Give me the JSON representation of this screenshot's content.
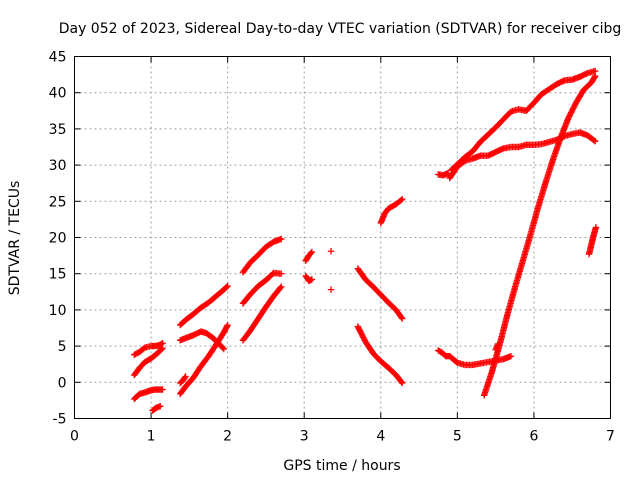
{
  "chart_data": {
    "type": "scatter",
    "title": "Day 052 of 2023, Sidereal Day-to-day VTEC variation (SDTVAR) for receiver cibg",
    "xlabel": "GPS time / hours",
    "ylabel": "SDTVAR / TECUs",
    "xlim": [
      0,
      7
    ],
    "ylim": [
      -5,
      45
    ],
    "x_ticks": [
      0,
      1,
      2,
      3,
      4,
      5,
      6,
      7
    ],
    "y_ticks": [
      -5,
      0,
      5,
      10,
      15,
      20,
      25,
      30,
      35,
      40,
      45
    ],
    "grid": true,
    "marker": "+",
    "color": "#ff0000",
    "segments": [
      {
        "x": [
          0.78,
          0.85,
          0.92,
          1.0,
          1.05,
          1.1,
          1.15
        ],
        "y": [
          3.8,
          4.2,
          4.8,
          5.0,
          5.0,
          5.1,
          5.4
        ]
      },
      {
        "x": [
          0.78,
          0.85,
          0.92,
          1.0,
          1.05,
          1.1,
          1.15
        ],
        "y": [
          1.0,
          2.0,
          2.8,
          3.3,
          3.7,
          4.2,
          4.7
        ]
      },
      {
        "x": [
          0.78,
          0.85,
          0.92,
          1.0,
          1.05,
          1.1,
          1.15
        ],
        "y": [
          -2.3,
          -1.6,
          -1.4,
          -1.1,
          -1.0,
          -1.0,
          -1.0
        ]
      },
      {
        "x": [
          1.02,
          1.07,
          1.12
        ],
        "y": [
          -3.9,
          -3.5,
          -3.3
        ]
      },
      {
        "x": [
          1.38,
          1.45,
          1.55,
          1.65,
          1.75,
          1.85,
          1.95,
          2.0
        ],
        "y": [
          7.9,
          8.6,
          9.4,
          10.3,
          11.0,
          11.9,
          12.8,
          13.3
        ]
      },
      {
        "x": [
          1.38,
          1.45,
          1.55,
          1.65,
          1.72,
          1.8,
          1.88,
          1.95
        ],
        "y": [
          5.8,
          6.1,
          6.5,
          7.0,
          6.8,
          6.2,
          5.4,
          4.6
        ]
      },
      {
        "x": [
          1.38,
          1.45,
          1.55,
          1.65,
          1.75,
          1.85,
          1.95,
          2.0
        ],
        "y": [
          -1.6,
          -0.6,
          0.6,
          2.2,
          3.6,
          5.2,
          6.9,
          7.9
        ]
      },
      {
        "x": [
          1.38,
          1.42,
          1.45
        ],
        "y": [
          -0.1,
          0.3,
          0.8
        ]
      },
      {
        "x": [
          2.2,
          2.3,
          2.4,
          2.5,
          2.6,
          2.7
        ],
        "y": [
          15.2,
          16.6,
          17.6,
          18.7,
          19.4,
          19.8
        ]
      },
      {
        "x": [
          2.2,
          2.3,
          2.4,
          2.5,
          2.6,
          2.7
        ],
        "y": [
          10.9,
          12.2,
          13.3,
          14.1,
          15.1,
          15.0
        ]
      },
      {
        "x": [
          2.2,
          2.3,
          2.4,
          2.5,
          2.6,
          2.7
        ],
        "y": [
          5.8,
          7.2,
          8.8,
          10.4,
          11.9,
          13.2
        ]
      },
      {
        "x": [
          3.02,
          3.06,
          3.1
        ],
        "y": [
          16.8,
          17.5,
          18.0
        ]
      },
      {
        "x": [
          3.02,
          3.06,
          3.1
        ],
        "y": [
          14.7,
          14.0,
          14.2
        ]
      },
      {
        "x": [
          3.35
        ],
        "y": [
          18.1
        ]
      },
      {
        "x": [
          3.35
        ],
        "y": [
          12.8
        ]
      },
      {
        "x": [
          3.7,
          3.8,
          3.9,
          4.0,
          4.1,
          4.2,
          4.28
        ],
        "y": [
          15.7,
          14.2,
          13.2,
          12.1,
          11.0,
          10.0,
          8.8
        ]
      },
      {
        "x": [
          3.7,
          3.8,
          3.9,
          4.0,
          4.1,
          4.2,
          4.28
        ],
        "y": [
          7.7,
          5.6,
          4.0,
          2.9,
          2.0,
          1.0,
          -0.1
        ]
      },
      {
        "x": [
          4.0,
          4.05,
          4.1,
          4.15,
          4.2,
          4.28
        ],
        "y": [
          22.0,
          23.3,
          24.0,
          24.3,
          24.6,
          25.3
        ]
      },
      {
        "x": [
          4.75,
          4.82,
          4.88
        ],
        "y": [
          28.7,
          28.6,
          28.9
        ]
      },
      {
        "x": [
          4.92,
          5.0,
          5.1,
          5.2,
          5.3,
          5.4,
          5.5,
          5.6,
          5.7,
          5.8,
          5.9,
          6.0,
          6.1,
          6.2,
          6.3,
          6.4,
          6.5,
          6.6,
          6.7,
          6.8
        ],
        "y": [
          29.3,
          30.1,
          31.1,
          31.9,
          33.2,
          34.2,
          35.2,
          36.3,
          37.4,
          37.7,
          37.5,
          38.6,
          39.8,
          40.5,
          41.2,
          41.7,
          41.8,
          42.2,
          42.7,
          43.0
        ]
      },
      {
        "x": [
          4.9,
          5.0,
          5.1,
          5.2,
          5.3,
          5.4,
          5.5,
          5.6,
          5.7,
          5.8,
          5.9,
          6.0,
          6.1,
          6.2,
          6.3,
          6.4,
          6.5,
          6.6,
          6.7,
          6.8
        ],
        "y": [
          28.2,
          29.8,
          30.6,
          30.9,
          31.3,
          31.3,
          31.8,
          32.3,
          32.5,
          32.5,
          32.8,
          32.8,
          32.9,
          33.2,
          33.5,
          34.0,
          34.3,
          34.5,
          34.1,
          33.3
        ]
      },
      {
        "x": [
          4.75,
          4.8,
          4.85,
          4.9,
          5.0,
          5.1,
          5.2,
          5.3,
          5.4,
          5.5,
          5.6,
          5.7
        ],
        "y": [
          4.4,
          4.1,
          3.6,
          3.6,
          2.7,
          2.4,
          2.4,
          2.6,
          2.8,
          3.0,
          3.2,
          3.6
        ]
      },
      {
        "x": [
          5.35,
          5.45,
          5.55,
          5.65,
          5.75,
          5.85,
          5.95,
          6.05,
          6.15,
          6.25,
          6.35,
          6.45,
          6.55,
          6.65,
          6.75,
          6.8
        ],
        "y": [
          -1.8,
          1.4,
          5.1,
          9.2,
          13.0,
          16.6,
          20.2,
          24.0,
          27.5,
          30.8,
          33.8,
          36.5,
          38.6,
          40.4,
          41.4,
          42.3
        ]
      },
      {
        "x": [
          5.5,
          5.53
        ],
        "y": [
          4.5,
          5.3
        ]
      },
      {
        "x": [
          6.72,
          6.75,
          6.78,
          6.81
        ],
        "y": [
          17.7,
          19.0,
          20.3,
          21.4
        ]
      }
    ]
  }
}
